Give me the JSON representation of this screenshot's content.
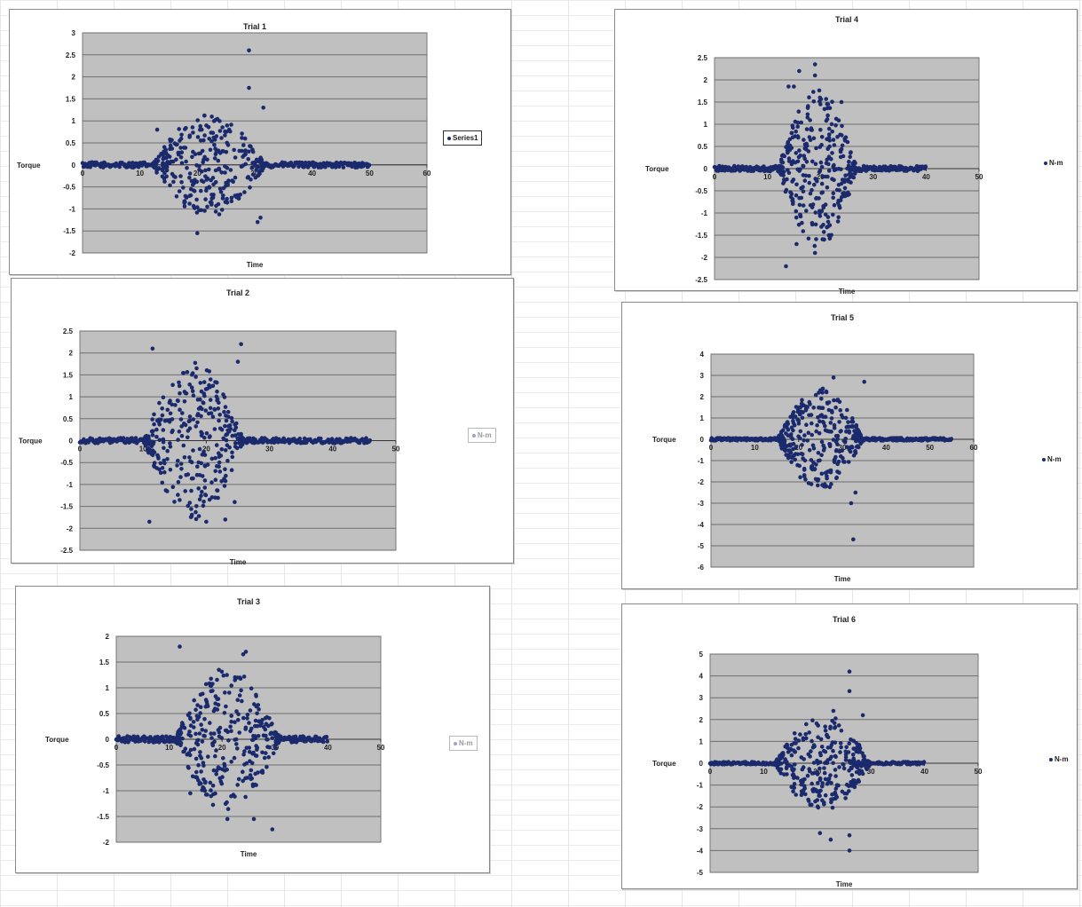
{
  "colors": {
    "plot_bg": "#c0c0c0",
    "grid": "#6e6e6e",
    "marker": "#1a2a6c",
    "frame": "#8a8a8a"
  },
  "chart_data": [
    {
      "type": "scatter",
      "title": "Trial 1",
      "xlabel": "Time",
      "ylabel": "Torque",
      "xlim": [
        0,
        60
      ],
      "ylim": [
        -2,
        3
      ],
      "xticks": [
        "0",
        "10",
        "20",
        "30",
        "40",
        "50",
        "60"
      ],
      "yticks": [
        "-2",
        "-1.5",
        "-1",
        "-0.5",
        "0",
        "0.5",
        "1",
        "1.5",
        "2",
        "2.5",
        "3"
      ],
      "grid": true,
      "legend_position": "right",
      "series": [
        {
          "name": "Series1",
          "baseline": [
            0,
            50
          ],
          "active_range": [
            12,
            32
          ],
          "spread": 1.2,
          "outliers": [
            [
              29,
              2.6
            ],
            [
              29,
              1.75
            ],
            [
              31.5,
              1.3
            ],
            [
              31,
              -1.2
            ],
            [
              30.5,
              -1.3
            ],
            [
              20,
              -1.55
            ],
            [
              13,
              0.8
            ]
          ]
        }
      ]
    },
    {
      "type": "scatter",
      "title": "Trial 2",
      "xlabel": "Time",
      "ylabel": "Torque",
      "xlim": [
        0,
        50
      ],
      "ylim": [
        -2.5,
        2.5
      ],
      "xticks": [
        "0",
        "10",
        "20",
        "30",
        "40",
        "50"
      ],
      "yticks": [
        "-2.5",
        "-2",
        "-1.5",
        "-1",
        "-0.5",
        "0",
        "0.5",
        "1",
        "1.5",
        "2",
        "2.5"
      ],
      "grid": true,
      "legend_position": "right",
      "series": [
        {
          "name": "N-m",
          "baseline": [
            0,
            46
          ],
          "active_range": [
            10,
            26
          ],
          "spread": 1.8,
          "outliers": [
            [
              11.5,
              2.1
            ],
            [
              25.5,
              2.2
            ],
            [
              25,
              1.8
            ],
            [
              11,
              -1.85
            ],
            [
              23,
              -1.8
            ],
            [
              20,
              -1.85
            ],
            [
              24.5,
              -1.4
            ]
          ]
        }
      ]
    },
    {
      "type": "scatter",
      "title": "Trial 3",
      "xlabel": "Time",
      "ylabel": "Torque",
      "xlim": [
        0,
        50
      ],
      "ylim": [
        -2,
        2
      ],
      "xticks": [
        "0",
        "10",
        "20",
        "30",
        "40",
        "50"
      ],
      "yticks": [
        "-2",
        "-1.5",
        "-1",
        "-0.5",
        "0",
        "0.5",
        "1",
        "1.5",
        "2"
      ],
      "grid": true,
      "legend_position": "right",
      "series": [
        {
          "name": "N-m",
          "baseline": [
            0,
            40
          ],
          "active_range": [
            11,
            31
          ],
          "spread": 1.4,
          "outliers": [
            [
              12,
              1.8
            ],
            [
              24.5,
              1.7
            ],
            [
              24,
              1.65
            ],
            [
              29.5,
              -1.75
            ],
            [
              21,
              -1.55
            ],
            [
              14,
              -1.05
            ],
            [
              26,
              -1.55
            ]
          ]
        }
      ]
    },
    {
      "type": "scatter",
      "title": "Trial 4",
      "xlabel": "Time",
      "ylabel": "Torque",
      "xlim": [
        0,
        50
      ],
      "ylim": [
        -2.5,
        2.5
      ],
      "xticks": [
        "0",
        "10",
        "20",
        "30",
        "40",
        "50"
      ],
      "yticks": [
        "-2.5",
        "-2",
        "-1.5",
        "-1",
        "-0.5",
        "0",
        "0.5",
        "1",
        "1.5",
        "2",
        "2.5"
      ],
      "grid": true,
      "legend_position": "right",
      "series": [
        {
          "name": "N-m",
          "baseline": [
            0,
            40
          ],
          "active_range": [
            12,
            27
          ],
          "spread": 1.8,
          "outliers": [
            [
              13.5,
              -2.2
            ],
            [
              19,
              2.35
            ],
            [
              19,
              2.1
            ],
            [
              16,
              2.2
            ],
            [
              14,
              1.85
            ],
            [
              15,
              1.85
            ],
            [
              19,
              -1.9
            ],
            [
              15.5,
              -1.7
            ],
            [
              24,
              1.5
            ]
          ]
        }
      ]
    },
    {
      "type": "scatter",
      "title": "Trial 5",
      "xlabel": "Time",
      "ylabel": "Torque",
      "xlim": [
        0,
        60
      ],
      "ylim": [
        -6,
        4
      ],
      "xticks": [
        "0",
        "10",
        "20",
        "30",
        "40",
        "50",
        "60"
      ],
      "yticks": [
        "-6",
        "-5",
        "-4",
        "-3",
        "-2",
        "-1",
        "0",
        "1",
        "2",
        "3",
        "4"
      ],
      "grid": true,
      "legend_position": "right",
      "series": [
        {
          "name": "N-m",
          "baseline": [
            0,
            55
          ],
          "active_range": [
            15,
            35
          ],
          "spread": 2.4,
          "outliers": [
            [
              35,
              2.7
            ],
            [
              28,
              2.9
            ],
            [
              32.5,
              -4.7
            ],
            [
              32,
              -3
            ],
            [
              25,
              2.3
            ],
            [
              33,
              -2.5
            ]
          ]
        }
      ]
    },
    {
      "type": "scatter",
      "title": "Trial 6",
      "xlabel": "Time",
      "ylabel": "Torque",
      "xlim": [
        0,
        50
      ],
      "ylim": [
        -5,
        5
      ],
      "xticks": [
        "0",
        "10",
        "20",
        "30",
        "40",
        "50"
      ],
      "yticks": [
        "-5",
        "-4",
        "-3",
        "-2",
        "-1",
        "0",
        "1",
        "2",
        "3",
        "4",
        "5"
      ],
      "grid": true,
      "legend_position": "right",
      "series": [
        {
          "name": "N-m",
          "baseline": [
            0,
            40
          ],
          "active_range": [
            12,
            30
          ],
          "spread": 2.3,
          "outliers": [
            [
              26,
              4.2
            ],
            [
              26,
              3.3
            ],
            [
              22.5,
              -3.5
            ],
            [
              26,
              -4
            ],
            [
              26,
              -3.3
            ],
            [
              23,
              2.4
            ],
            [
              28.5,
              2.2
            ],
            [
              20.5,
              -3.2
            ]
          ]
        }
      ]
    }
  ]
}
